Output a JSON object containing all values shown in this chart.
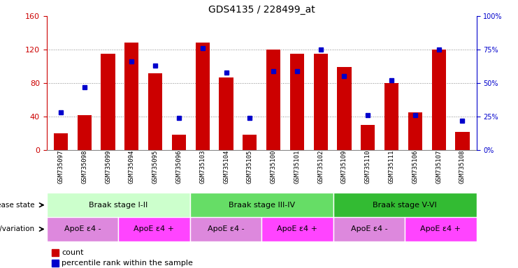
{
  "title": "GDS4135 / 228499_at",
  "samples": [
    "GSM735097",
    "GSM735098",
    "GSM735099",
    "GSM735094",
    "GSM735095",
    "GSM735096",
    "GSM735103",
    "GSM735104",
    "GSM735105",
    "GSM735100",
    "GSM735101",
    "GSM735102",
    "GSM735109",
    "GSM735110",
    "GSM735111",
    "GSM735106",
    "GSM735107",
    "GSM735108"
  ],
  "counts": [
    20,
    42,
    115,
    128,
    92,
    18,
    128,
    87,
    18,
    120,
    115,
    115,
    99,
    30,
    80,
    45,
    120,
    22
  ],
  "percentiles": [
    28,
    47,
    null,
    66,
    63,
    24,
    76,
    58,
    24,
    59,
    59,
    75,
    55,
    26,
    52,
    26,
    75,
    22
  ],
  "bar_color": "#cc0000",
  "dot_color": "#0000cc",
  "ylim_left": [
    0,
    160
  ],
  "ylim_right": [
    0,
    100
  ],
  "yticks_left": [
    0,
    40,
    80,
    120,
    160
  ],
  "yticks_right": [
    0,
    25,
    50,
    75,
    100
  ],
  "disease_state_groups": [
    {
      "label": "Braak stage I-II",
      "start": 0,
      "end": 6,
      "color": "#ccffcc"
    },
    {
      "label": "Braak stage III-IV",
      "start": 6,
      "end": 12,
      "color": "#66dd66"
    },
    {
      "label": "Braak stage V-VI",
      "start": 12,
      "end": 18,
      "color": "#33bb33"
    }
  ],
  "genotype_groups": [
    {
      "label": "ApoE ε4 -",
      "start": 0,
      "end": 3,
      "color": "#dd88dd"
    },
    {
      "label": "ApoE ε4 +",
      "start": 3,
      "end": 6,
      "color": "#ff44ff"
    },
    {
      "label": "ApoE ε4 -",
      "start": 6,
      "end": 9,
      "color": "#dd88dd"
    },
    {
      "label": "ApoE ε4 +",
      "start": 9,
      "end": 12,
      "color": "#ff44ff"
    },
    {
      "label": "ApoE ε4 -",
      "start": 12,
      "end": 15,
      "color": "#dd88dd"
    },
    {
      "label": "ApoE ε4 +",
      "start": 15,
      "end": 18,
      "color": "#ff44ff"
    }
  ],
  "left_ylabel_color": "#cc0000",
  "right_ylabel_color": "#0000cc",
  "grid_color": "#888888",
  "background_color": "#ffffff"
}
